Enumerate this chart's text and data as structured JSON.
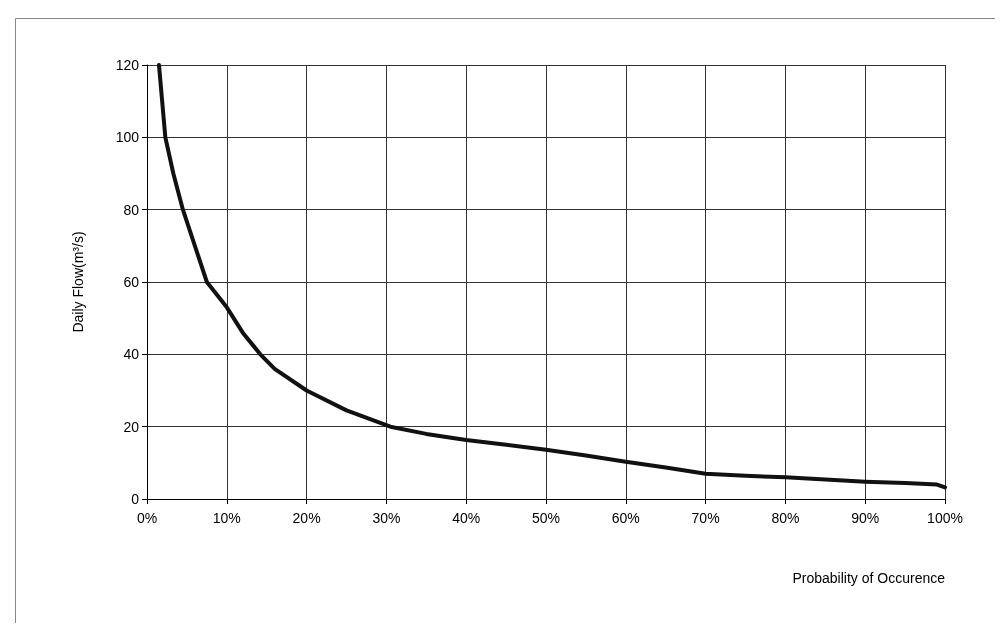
{
  "chart_data": {
    "type": "line",
    "xlabel": "Probability of Occurence",
    "ylabel": "Daily Flow(m³/s)",
    "xlim": [
      0,
      100
    ],
    "ylim": [
      0,
      120
    ],
    "xticks": [
      {
        "value": 0,
        "label": "0%"
      },
      {
        "value": 10,
        "label": "10%"
      },
      {
        "value": 20,
        "label": "20%"
      },
      {
        "value": 30,
        "label": "30%"
      },
      {
        "value": 40,
        "label": "40%"
      },
      {
        "value": 50,
        "label": "50%"
      },
      {
        "value": 60,
        "label": "60%"
      },
      {
        "value": 70,
        "label": "70%"
      },
      {
        "value": 80,
        "label": "80%"
      },
      {
        "value": 90,
        "label": "90%"
      },
      {
        "value": 100,
        "label": "100%"
      }
    ],
    "yticks": [
      0,
      20,
      40,
      60,
      80,
      100,
      120
    ],
    "grid": true,
    "marker": "none",
    "line_style": "solid",
    "series": [
      {
        "color": "#111111",
        "x": [
          1.5,
          2.3,
          3.3,
          4.5,
          6,
          7.5,
          10,
          12,
          14.2,
          16,
          20,
          25,
          30.5,
          35,
          40,
          45,
          50,
          55,
          60,
          65,
          70,
          75,
          80,
          85,
          90,
          95,
          99,
          100
        ],
        "values": [
          120,
          100,
          90,
          80,
          70,
          60,
          53,
          46,
          40,
          36,
          30,
          24.5,
          20,
          18,
          16.3,
          15,
          13.6,
          12,
          10.3,
          8.7,
          7,
          6.4,
          6,
          5.4,
          4.8,
          4.4,
          4,
          3.2
        ]
      }
    ]
  }
}
